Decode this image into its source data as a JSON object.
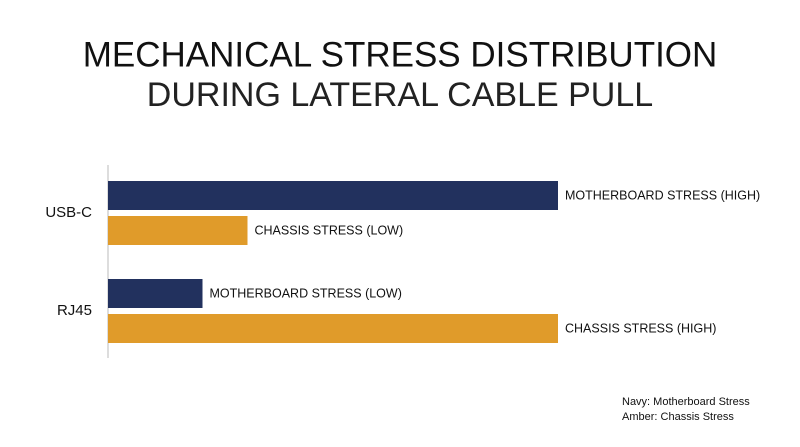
{
  "chart_data": {
    "type": "hbar",
    "title": "MECHANICAL STRESS DISTRIBUTION",
    "subtitle": "DURING LATERAL CABLE PULL",
    "categories": [
      "USB-C",
      "RJ45"
    ],
    "series": [
      {
        "name": "Navy: Motherboard Stress",
        "color": "#22315e",
        "values": [
          100,
          21
        ],
        "labels": [
          "MOTHERBOARD STRESS (HIGH)",
          "MOTHERBOARD STRESS (LOW)"
        ]
      },
      {
        "name": "Amber: Chassis Stress",
        "color": "#e09b2a",
        "values": [
          31,
          100
        ],
        "labels": [
          "CHASSIS STRESS (LOW)",
          "CHASSIS STRESS (HIGH)"
        ]
      }
    ],
    "xlim": [
      0,
      100
    ]
  }
}
